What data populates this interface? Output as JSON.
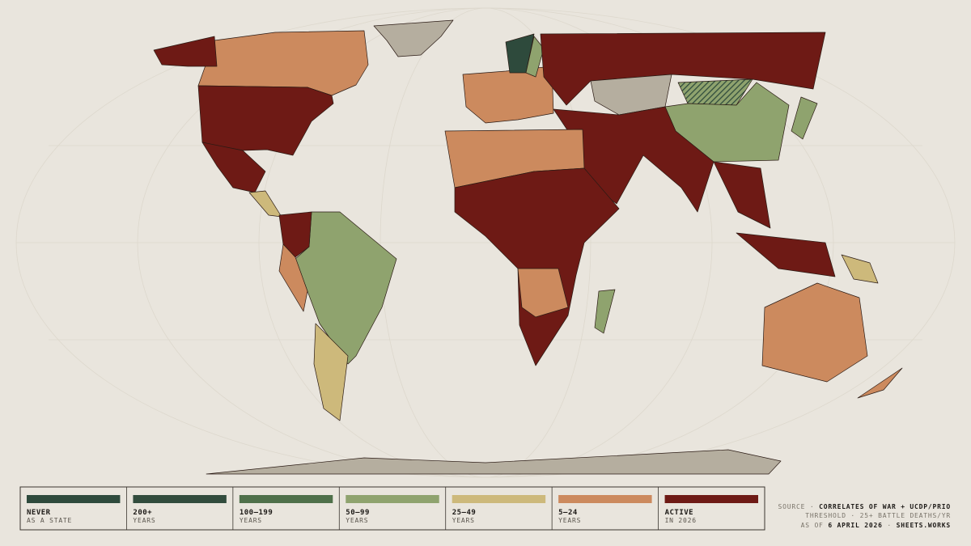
{
  "legend": {
    "items": [
      {
        "label": "NEVER",
        "sublabel": "AS A STATE",
        "color": "#2e4a3c"
      },
      {
        "label": "200+",
        "sublabel": "YEARS",
        "color": "#324c3d"
      },
      {
        "label": "100–199",
        "sublabel": "YEARS",
        "color": "#4f704a"
      },
      {
        "label": "50–99",
        "sublabel": "YEARS",
        "color": "#8fa36e"
      },
      {
        "label": "25–49",
        "sublabel": "YEARS",
        "color": "#cdb97b"
      },
      {
        "label": "5–24",
        "sublabel": "YEARS",
        "color": "#cc8a5e"
      },
      {
        "label": "ACTIVE",
        "sublabel": "IN 2026",
        "color": "#6e1a15"
      }
    ]
  },
  "source": {
    "line1": {
      "prefix": "SOURCE ·",
      "emphasis": "CORRELATES OF WAR + UCDP/PRIO"
    },
    "line2": "THRESHOLD · 25+ BATTLE DEATHS/YR",
    "line3": {
      "prefix": "AS OF",
      "date": "6 APRIL 2026",
      "separator": "·",
      "site": "SHEETS.WORKS"
    }
  }
}
